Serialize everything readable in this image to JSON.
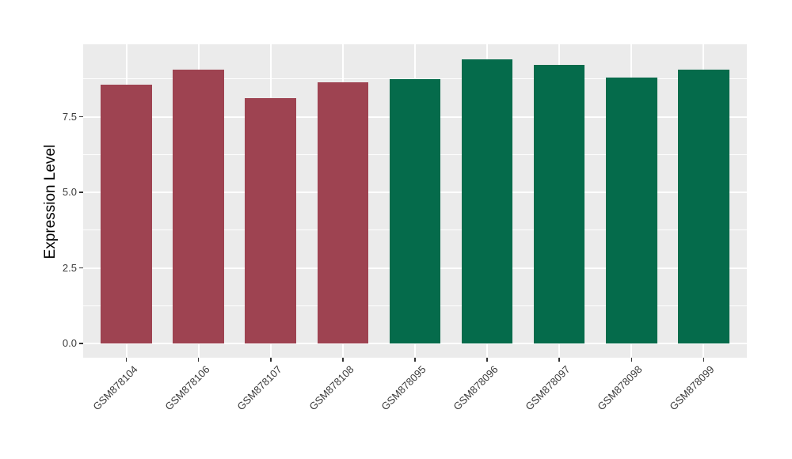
{
  "chart_data": {
    "type": "bar",
    "title": "",
    "xlabel": "",
    "ylabel": "Expression Level",
    "categories": [
      "GSM878104",
      "GSM878106",
      "GSM878107",
      "GSM878108",
      "GSM878095",
      "GSM878096",
      "GSM878097",
      "GSM878098",
      "GSM878099"
    ],
    "values": [
      8.57,
      9.07,
      8.13,
      8.64,
      8.76,
      9.4,
      9.22,
      8.79,
      9.07
    ],
    "bar_colors": [
      "#9E4351",
      "#9E4351",
      "#9E4351",
      "#9E4351",
      "#056B4B",
      "#056B4B",
      "#056B4B",
      "#056B4B",
      "#056B4B"
    ],
    "y_axis": {
      "tick_labels": [
        "0.0",
        "2.5",
        "5.0",
        "7.5"
      ],
      "tick_values": [
        0,
        2.5,
        5,
        7.5
      ],
      "minor_tick_values": [
        1.25,
        3.75,
        6.25,
        8.75
      ],
      "range": [
        -0.47,
        9.9
      ]
    },
    "x_axis": {
      "label_angle_deg": 45
    },
    "legend": "none",
    "grid": true,
    "style": {
      "background": "#FFFFFF",
      "panel_bg": "#EBEBEB",
      "grid_color": "#FFFFFF",
      "axis_text_color": "#3A3A3A",
      "axis_title_color": "#000000",
      "tick_mark_color": "#333333",
      "group1_color": "#9E4351",
      "group2_color": "#056B4B"
    }
  }
}
